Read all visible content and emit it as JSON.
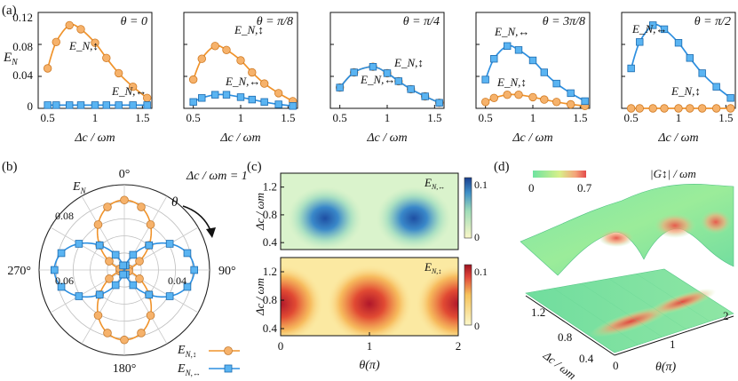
{
  "colors": {
    "orange": "#f0932b",
    "orange_marker": "#f6b26b",
    "blue": "#2d8fe0",
    "blue_marker": "#5ab4f2",
    "axis": "#111111"
  },
  "panel_a": {
    "label": "(a)",
    "ylabel": "E_N",
    "xlabel": "Δc / ωm",
    "xticks": [
      "0.5",
      "1",
      "1.5"
    ],
    "yticks": [
      "0",
      "0.04",
      "0.08",
      "0.12"
    ]
  },
  "panel_b": {
    "label": "(b)",
    "title": "E_N",
    "parameter": "Δc / ωm = 1",
    "theta_label": "θ"
  },
  "panel_c": {
    "label": "(c)",
    "ylabel": "Δc / ωm",
    "xlabel": "θ(π)"
  },
  "panel_d": {
    "label": "(d)",
    "colorbar_title": "|G↕| / ωm",
    "colorbar_min": "0",
    "colorbar_max": "0.7",
    "xlabel": "θ(π)",
    "ylabel": "Δc / ωm"
  },
  "chart_data": [
    {
      "type": "line",
      "panel": "a1",
      "title": "θ = 0",
      "xlabel": "Δc / ωm",
      "ylabel": "E_N",
      "xlim": [
        0.4,
        1.6
      ],
      "ylim": [
        0,
        0.12
      ],
      "series": [
        {
          "name": "E_N,↕",
          "x": [
            0.5,
            0.59,
            0.73,
            0.85,
            1.0,
            1.12,
            1.25,
            1.4,
            1.55
          ],
          "values": [
            0.05,
            0.083,
            0.104,
            0.099,
            0.082,
            0.063,
            0.044,
            0.027,
            0.013
          ]
        },
        {
          "name": "E_N,↔",
          "x": [
            0.5,
            0.59,
            0.73,
            0.85,
            1.0,
            1.12,
            1.25,
            1.4,
            1.55
          ],
          "values": [
            0.004,
            0.004,
            0.004,
            0.004,
            0.004,
            0.004,
            0.004,
            0.004,
            0.004
          ]
        }
      ]
    },
    {
      "type": "line",
      "panel": "a2",
      "title": "θ = π/8",
      "xlabel": "Δc / ωm",
      "xlim": [
        0.4,
        1.6
      ],
      "ylim": [
        0,
        0.12
      ],
      "series": [
        {
          "name": "E_N,↕",
          "x": [
            0.5,
            0.59,
            0.73,
            0.85,
            1.0,
            1.12,
            1.25,
            1.4,
            1.55
          ],
          "values": [
            0.036,
            0.062,
            0.078,
            0.073,
            0.06,
            0.045,
            0.031,
            0.019,
            0.009
          ]
        },
        {
          "name": "E_N,↔",
          "x": [
            0.5,
            0.59,
            0.73,
            0.85,
            1.0,
            1.12,
            1.25,
            1.4,
            1.55
          ],
          "values": [
            0.008,
            0.013,
            0.017,
            0.017,
            0.014,
            0.011,
            0.008,
            0.005,
            0.003
          ]
        }
      ]
    },
    {
      "type": "line",
      "panel": "a3",
      "title": "θ = π/4",
      "xlabel": "Δc / ωm",
      "xlim": [
        0.4,
        1.6
      ],
      "ylim": [
        0,
        0.12
      ],
      "series": [
        {
          "name": "E_N,↕",
          "x": [
            0.5,
            0.65,
            0.85,
            1.0,
            1.12,
            1.25,
            1.4,
            1.55
          ],
          "values": [
            0.026,
            0.045,
            0.052,
            0.044,
            0.034,
            0.024,
            0.015,
            0.007
          ]
        },
        {
          "name": "E_N,↔",
          "x": [
            0.5,
            0.65,
            0.85,
            1.0,
            1.12,
            1.25,
            1.4,
            1.55
          ],
          "values": [
            0.026,
            0.045,
            0.052,
            0.044,
            0.034,
            0.024,
            0.015,
            0.007
          ]
        }
      ]
    },
    {
      "type": "line",
      "panel": "a4",
      "title": "θ = 3π/8",
      "xlabel": "Δc / ωm",
      "xlim": [
        0.4,
        1.6
      ],
      "ylim": [
        0,
        0.12
      ],
      "series": [
        {
          "name": "E_N,↕",
          "x": [
            0.5,
            0.59,
            0.73,
            0.85,
            1.0,
            1.12,
            1.25,
            1.4,
            1.55
          ],
          "values": [
            0.008,
            0.013,
            0.017,
            0.017,
            0.014,
            0.011,
            0.008,
            0.005,
            0.003
          ]
        },
        {
          "name": "E_N,↔",
          "x": [
            0.5,
            0.59,
            0.73,
            0.85,
            1.0,
            1.12,
            1.25,
            1.4,
            1.55
          ],
          "values": [
            0.036,
            0.062,
            0.078,
            0.073,
            0.06,
            0.045,
            0.031,
            0.019,
            0.009
          ]
        }
      ]
    },
    {
      "type": "line",
      "panel": "a5",
      "title": "θ = π/2",
      "xlabel": "Δc / ωm",
      "xlim": [
        0.4,
        1.6
      ],
      "ylim": [
        0,
        0.12
      ],
      "series": [
        {
          "name": "E_N,↕",
          "x": [
            0.5,
            0.59,
            0.73,
            0.85,
            1.0,
            1.12,
            1.25,
            1.4,
            1.55
          ],
          "values": [
            0.0,
            0.0,
            0.0,
            0.0,
            0.0,
            0.0,
            0.0,
            0.0,
            0.0
          ]
        },
        {
          "name": "E_N,↔",
          "x": [
            0.5,
            0.59,
            0.73,
            0.85,
            1.0,
            1.12,
            1.25,
            1.4,
            1.55
          ],
          "values": [
            0.05,
            0.083,
            0.104,
            0.099,
            0.082,
            0.063,
            0.044,
            0.027,
            0.013
          ]
        }
      ]
    },
    {
      "type": "polar",
      "panel": "b",
      "title": "E_N",
      "annotation": "Δc / ωm = 1",
      "angle_ticks": [
        "0°",
        "90°",
        "180°",
        "270°"
      ],
      "radial_ticks": [
        "0.04",
        "0.06",
        "0.08"
      ],
      "rlim": [
        0,
        0.1
      ],
      "series": [
        {
          "name": "E_N,↕",
          "peak": 0.082,
          "shape": "cos^2"
        },
        {
          "name": "E_N,↔",
          "peak": 0.082,
          "shape": "sin^2"
        }
      ],
      "legend": [
        "E_N,↕",
        "E_N,↔"
      ],
      "angle_samples_deg": [
        0,
        15,
        30,
        45,
        60,
        75,
        90,
        105,
        120,
        135,
        150,
        165,
        180,
        195,
        210,
        225,
        240,
        255,
        270,
        285,
        300,
        315,
        330,
        345
      ]
    },
    {
      "type": "heatmap",
      "panel": "c-top",
      "label": "E_N,↔",
      "xlabel": "θ(π)",
      "ylabel": "Δc / ωm",
      "xlim": [
        0,
        2
      ],
      "ylim": [
        0.3,
        1.4
      ],
      "xticks": [
        "0",
        "1",
        "2"
      ],
      "yticks": [
        "0.4",
        "0.8",
        "1.2"
      ],
      "colorbar": {
        "min": "0",
        "max": "0.1",
        "scheme": "yellow-green-blue"
      },
      "peaks": [
        {
          "theta": 0.5,
          "delta": 0.75,
          "value": 0.1
        },
        {
          "theta": 1.5,
          "delta": 0.75,
          "value": 0.1
        }
      ]
    },
    {
      "type": "heatmap",
      "panel": "c-bottom",
      "label": "E_N,↕",
      "xlabel": "θ(π)",
      "ylabel": "Δc / ωm",
      "xlim": [
        0,
        2
      ],
      "ylim": [
        0.3,
        1.4
      ],
      "xticks": [
        "0",
        "1",
        "2"
      ],
      "yticks": [
        "0.4",
        "0.8",
        "1.2"
      ],
      "colorbar": {
        "min": "0",
        "max": "0.1",
        "scheme": "yellow-red"
      },
      "peaks": [
        {
          "theta": 0,
          "delta": 0.75,
          "value": 0.1
        },
        {
          "theta": 1,
          "delta": 0.75,
          "value": 0.1
        },
        {
          "theta": 2,
          "delta": 0.75,
          "value": 0.1
        }
      ]
    },
    {
      "type": "surface",
      "panel": "d",
      "label": "|G↕| / ωm",
      "xlabel": "θ(π)",
      "ylabel": "Δc / ωm",
      "xticks": [
        "0",
        "1",
        "2"
      ],
      "yticks": [
        "0.4",
        "0.8",
        "1.2"
      ],
      "colorbar": {
        "min": "0",
        "max": "0.7",
        "scheme": "green-red"
      }
    }
  ]
}
